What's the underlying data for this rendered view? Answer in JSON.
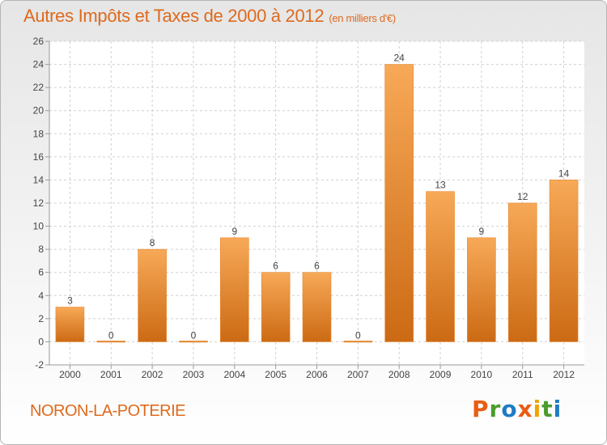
{
  "header": {
    "title": "Autres Impôts et Taxes de 2000 à 2012",
    "unit_note": "(en milliers d'€)"
  },
  "footer": {
    "commune": "NORON-LA-POTERIE",
    "logo_text": "Proxiti",
    "logo_letters": [
      "P",
      "r",
      "o",
      "x",
      "i",
      "t",
      "i"
    ],
    "logo_colors": [
      "#e85d12",
      "#4a9c2d",
      "#1f7bc4",
      "#e85d12",
      "#f0a400",
      "#4a9c2d",
      "#1f7bc4"
    ]
  },
  "chart_data": {
    "type": "bar",
    "title": "Autres Impôts et Taxes de 2000 à 2012",
    "subtitle": "(en milliers d'€)",
    "categories": [
      "2000",
      "2001",
      "2002",
      "2003",
      "2004",
      "2005",
      "2006",
      "2007",
      "2008",
      "2009",
      "2010",
      "2011",
      "2012"
    ],
    "values": [
      3,
      0,
      8,
      0,
      9,
      6,
      6,
      0,
      24,
      13,
      9,
      12,
      14
    ],
    "data_labels": [
      "3",
      "0",
      "8",
      "0",
      "9",
      "6",
      "6",
      "0",
      "24",
      "13",
      "9",
      "12",
      "14"
    ],
    "ylim": [
      -2,
      26
    ],
    "yticks": [
      -2,
      0,
      2,
      4,
      6,
      8,
      10,
      12,
      14,
      16,
      18,
      20,
      22,
      24,
      26
    ],
    "xlabel": "",
    "ylabel": "",
    "grid": true,
    "bar_color": "#e8862d",
    "bar_color_light": "#f7a957",
    "bar_color_dark": "#cc6a14"
  }
}
